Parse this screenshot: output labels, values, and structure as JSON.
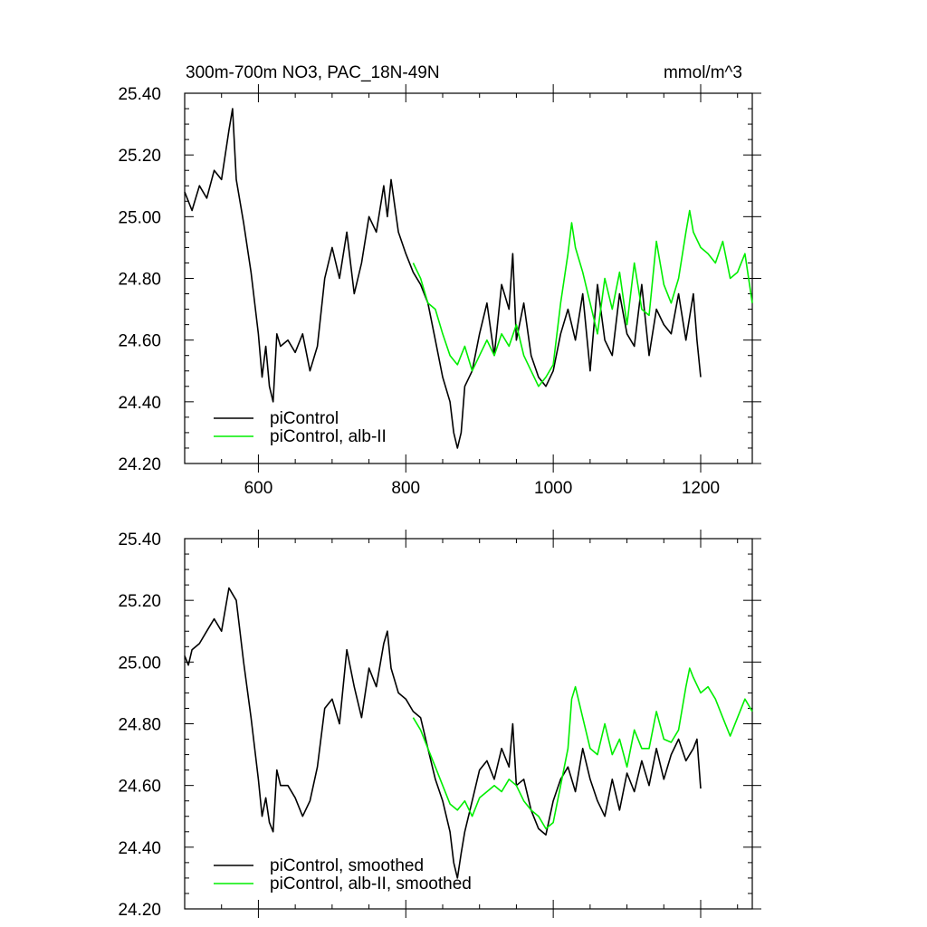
{
  "chart_data": [
    {
      "type": "line",
      "title": "300m-700m NO3, PAC_18N-49N",
      "units": "mmol/m^3",
      "xlim": [
        500,
        1270
      ],
      "ylim": [
        24.2,
        25.4
      ],
      "x_ticks": [
        600,
        800,
        1000,
        1200
      ],
      "y_ticks": [
        "24.20",
        "24.40",
        "24.60",
        "24.80",
        "25.00",
        "25.20",
        "25.40"
      ],
      "legend_position": "bottom-left",
      "series": [
        {
          "name": "piControl",
          "color": "#000000",
          "x": [
            500,
            510,
            520,
            530,
            540,
            550,
            560,
            565,
            570,
            580,
            590,
            600,
            605,
            610,
            615,
            620,
            625,
            630,
            640,
            650,
            660,
            670,
            680,
            690,
            700,
            710,
            720,
            730,
            740,
            750,
            760,
            770,
            775,
            780,
            790,
            800,
            810,
            820,
            830,
            840,
            850,
            860,
            865,
            870,
            875,
            880,
            890,
            900,
            910,
            920,
            930,
            940,
            945,
            950,
            960,
            970,
            980,
            990,
            1000,
            1010,
            1020,
            1030,
            1040,
            1050,
            1060,
            1070,
            1080,
            1090,
            1100,
            1110,
            1120,
            1130,
            1140,
            1150,
            1160,
            1170,
            1180,
            1190,
            1195,
            1200
          ],
          "y": [
            25.08,
            25.02,
            25.1,
            25.06,
            25.15,
            25.12,
            25.28,
            25.35,
            25.12,
            24.98,
            24.82,
            24.62,
            24.48,
            24.58,
            24.45,
            24.4,
            24.62,
            24.58,
            24.6,
            24.56,
            24.62,
            24.5,
            24.58,
            24.8,
            24.9,
            24.8,
            24.95,
            24.75,
            24.85,
            25.0,
            24.95,
            25.1,
            25.0,
            25.12,
            24.95,
            24.88,
            24.82,
            24.78,
            24.72,
            24.6,
            24.48,
            24.4,
            24.3,
            24.25,
            24.3,
            24.45,
            24.5,
            24.62,
            24.72,
            24.55,
            24.78,
            24.7,
            24.88,
            24.6,
            24.72,
            24.55,
            24.48,
            24.45,
            24.5,
            24.62,
            24.7,
            24.6,
            24.75,
            24.5,
            24.78,
            24.6,
            24.55,
            24.75,
            24.62,
            24.58,
            24.78,
            24.55,
            24.7,
            24.65,
            24.62,
            24.75,
            24.6,
            24.75,
            24.6,
            24.48
          ]
        },
        {
          "name": "piControl, alb-II",
          "color": "#00ee00",
          "x": [
            810,
            820,
            830,
            840,
            850,
            860,
            870,
            880,
            890,
            900,
            910,
            920,
            930,
            940,
            950,
            960,
            970,
            980,
            990,
            1000,
            1010,
            1020,
            1025,
            1030,
            1040,
            1050,
            1060,
            1070,
            1080,
            1090,
            1100,
            1110,
            1120,
            1130,
            1140,
            1150,
            1160,
            1170,
            1180,
            1185,
            1190,
            1200,
            1210,
            1220,
            1230,
            1240,
            1250,
            1260,
            1270
          ],
          "y": [
            24.85,
            24.8,
            24.72,
            24.7,
            24.62,
            24.55,
            24.52,
            24.58,
            24.5,
            24.55,
            24.6,
            24.55,
            24.62,
            24.58,
            24.65,
            24.55,
            24.5,
            24.45,
            24.48,
            24.52,
            24.72,
            24.88,
            24.98,
            24.9,
            24.82,
            24.72,
            24.62,
            24.8,
            24.7,
            24.82,
            24.65,
            24.85,
            24.7,
            24.68,
            24.92,
            24.78,
            24.72,
            24.8,
            24.95,
            25.02,
            24.95,
            24.9,
            24.88,
            24.85,
            24.92,
            24.8,
            24.82,
            24.88,
            24.72
          ]
        }
      ]
    },
    {
      "type": "line",
      "xlim": [
        500,
        1270
      ],
      "ylim": [
        24.2,
        25.4
      ],
      "y_ticks": [
        "24.20",
        "24.40",
        "24.60",
        "24.80",
        "25.00",
        "25.20",
        "25.40"
      ],
      "legend_position": "bottom-left",
      "series": [
        {
          "name": "piControl, smoothed",
          "color": "#000000",
          "x": [
            500,
            505,
            510,
            520,
            530,
            540,
            550,
            560,
            565,
            570,
            580,
            590,
            600,
            605,
            610,
            615,
            620,
            625,
            630,
            640,
            650,
            660,
            670,
            680,
            690,
            700,
            710,
            720,
            730,
            740,
            750,
            760,
            770,
            775,
            780,
            790,
            800,
            810,
            820,
            830,
            840,
            850,
            860,
            865,
            870,
            875,
            880,
            890,
            900,
            910,
            920,
            930,
            940,
            945,
            950,
            960,
            970,
            980,
            990,
            1000,
            1010,
            1020,
            1030,
            1040,
            1050,
            1060,
            1070,
            1080,
            1090,
            1100,
            1110,
            1120,
            1130,
            1140,
            1150,
            1160,
            1170,
            1180,
            1190,
            1195,
            1200
          ],
          "y": [
            25.02,
            24.99,
            25.04,
            25.06,
            25.1,
            25.14,
            25.1,
            25.24,
            25.22,
            25.2,
            25.0,
            24.82,
            24.62,
            24.5,
            24.56,
            24.48,
            24.45,
            24.65,
            24.6,
            24.6,
            24.56,
            24.5,
            24.55,
            24.66,
            24.85,
            24.88,
            24.8,
            25.04,
            24.92,
            24.82,
            24.98,
            24.92,
            25.06,
            25.1,
            24.98,
            24.9,
            24.88,
            24.84,
            24.82,
            24.72,
            24.62,
            24.55,
            24.45,
            24.35,
            24.3,
            24.38,
            24.45,
            24.55,
            24.65,
            24.68,
            24.62,
            24.72,
            24.66,
            24.8,
            24.6,
            24.62,
            24.52,
            24.46,
            24.44,
            24.55,
            24.62,
            24.66,
            24.58,
            24.72,
            24.62,
            24.55,
            24.5,
            24.62,
            24.52,
            24.64,
            24.58,
            24.68,
            24.6,
            24.72,
            24.62,
            24.7,
            24.75,
            24.68,
            24.72,
            24.75,
            24.59
          ]
        },
        {
          "name": "piControl, alb-II, smoothed",
          "color": "#00ee00",
          "x": [
            810,
            820,
            830,
            840,
            850,
            860,
            870,
            880,
            890,
            900,
            910,
            920,
            930,
            940,
            950,
            960,
            970,
            980,
            990,
            1000,
            1010,
            1020,
            1025,
            1030,
            1040,
            1050,
            1060,
            1070,
            1080,
            1090,
            1100,
            1110,
            1120,
            1130,
            1140,
            1150,
            1160,
            1170,
            1180,
            1185,
            1190,
            1200,
            1210,
            1220,
            1230,
            1240,
            1250,
            1260,
            1270
          ],
          "y": [
            24.82,
            24.78,
            24.72,
            24.66,
            24.6,
            24.54,
            24.52,
            24.55,
            24.5,
            24.56,
            24.58,
            24.6,
            24.58,
            24.62,
            24.6,
            24.55,
            24.52,
            24.5,
            24.46,
            24.48,
            24.6,
            24.72,
            24.88,
            24.92,
            24.82,
            24.72,
            24.7,
            24.8,
            24.7,
            24.75,
            24.66,
            24.78,
            24.72,
            24.72,
            24.84,
            24.75,
            24.74,
            24.78,
            24.92,
            24.98,
            24.95,
            24.9,
            24.92,
            24.88,
            24.82,
            24.76,
            24.82,
            24.88,
            24.84
          ]
        }
      ]
    }
  ]
}
